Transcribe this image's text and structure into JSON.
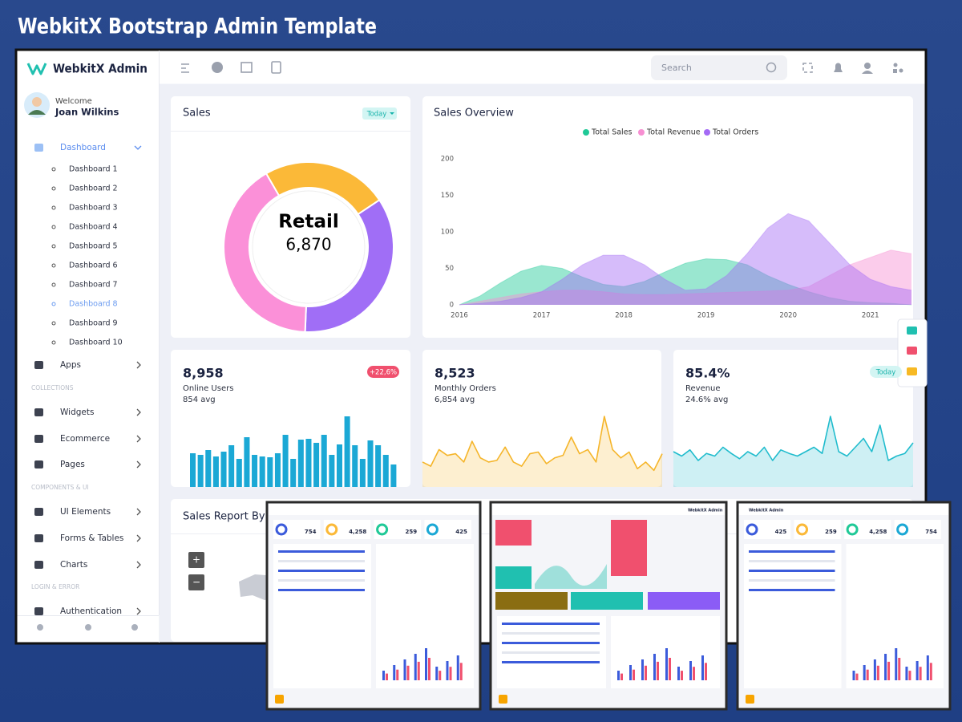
{
  "header": {
    "title": "WebkitX Bootstrap Admin Template"
  },
  "sidebar": {
    "brand": "WebkitX Admin",
    "welcome": "Welcome",
    "user": "Joan Wilkins",
    "menu": [
      {
        "label": "Dashboard",
        "open": true,
        "active_child": 7,
        "children": [
          "Dashboard 1",
          "Dashboard 2",
          "Dashboard 3",
          "Dashboard 4",
          "Dashboard 5",
          "Dashboard 6",
          "Dashboard 7",
          "Dashboard 8",
          "Dashboard 9",
          "Dashboard 10"
        ]
      },
      {
        "label": "Apps"
      },
      {
        "section": "COLLECTIONS"
      },
      {
        "label": "Widgets"
      },
      {
        "label": "Ecommerce"
      },
      {
        "label": "Pages"
      },
      {
        "section": "COMPONENTS & UI"
      },
      {
        "label": "UI Elements"
      },
      {
        "label": "Forms & Tables"
      },
      {
        "label": "Charts"
      },
      {
        "section": "LOGIN & ERROR"
      },
      {
        "label": "Authentication"
      }
    ]
  },
  "topbar": {
    "search_placeholder": "Search"
  },
  "sales_card": {
    "title": "Sales",
    "badge": "Today",
    "chart_data": {
      "type": "donut",
      "center_label": "Retail",
      "center_value": "6,870",
      "values": [
        24,
        35,
        41
      ],
      "colors": [
        "#fbb938",
        "#a06ef6",
        "#fb90d8"
      ]
    }
  },
  "sales_overview": {
    "title": "Sales Overview",
    "chart_data": {
      "type": "area",
      "x": [
        2016,
        2016.25,
        2016.5,
        2016.75,
        2017,
        2017.25,
        2017.5,
        2017.75,
        2018,
        2018.25,
        2018.5,
        2018.75,
        2019,
        2019.25,
        2019.5,
        2019.75,
        2020,
        2020.25,
        2020.5,
        2020.75,
        2021,
        2021.25,
        2021.5
      ],
      "xlim": [
        2016,
        2021.5
      ],
      "xticks": [
        2016,
        2017,
        2018,
        2019,
        2020,
        2021
      ],
      "ylim": [
        0,
        200
      ],
      "yticks": [
        0,
        50,
        100,
        150,
        200
      ],
      "series": [
        {
          "name": "Total Sales",
          "color": "#20c997",
          "values": [
            0,
            12,
            30,
            46,
            54,
            50,
            38,
            28,
            25,
            32,
            45,
            57,
            63,
            62,
            55,
            40,
            28,
            18,
            10,
            5,
            3,
            2,
            0
          ]
        },
        {
          "name": "Total Revenue",
          "color": "#f78fd2",
          "values": [
            0,
            5,
            10,
            15,
            18,
            20,
            20,
            18,
            15,
            14,
            14,
            15,
            16,
            17,
            18,
            19,
            20,
            25,
            40,
            55,
            65,
            75,
            70
          ]
        },
        {
          "name": "Total Orders",
          "color": "#a46af5",
          "values": [
            0,
            2,
            5,
            10,
            18,
            35,
            55,
            68,
            68,
            55,
            35,
            20,
            22,
            40,
            70,
            105,
            125,
            115,
            85,
            55,
            35,
            25,
            20
          ]
        }
      ]
    }
  },
  "stats": [
    {
      "value": "8,958",
      "label": "Online Users",
      "avg": "854 avg",
      "badge": "+22,6%",
      "badge_style": "danger",
      "chart_data": {
        "type": "bar",
        "color": "#1ba8d5",
        "values": [
          42,
          40,
          46,
          38,
          44,
          52,
          35,
          62,
          40,
          38,
          37,
          42,
          65,
          35,
          59,
          60,
          55,
          65,
          40,
          53,
          88,
          52,
          35,
          58,
          52,
          40,
          28
        ]
      }
    },
    {
      "value": "8,523",
      "label": "Monthly Orders",
      "avg": "6,854 avg",
      "chart_data": {
        "type": "area",
        "color": "#f5b52a",
        "values": [
          30,
          25,
          45,
          38,
          40,
          30,
          55,
          35,
          30,
          32,
          48,
          30,
          25,
          40,
          42,
          28,
          35,
          38,
          60,
          40,
          45,
          30,
          85,
          45,
          35,
          42,
          22,
          30,
          20,
          40
        ]
      }
    },
    {
      "value": "85.4%",
      "label": "Revenue",
      "avg": "24.6% avg",
      "badge": "Today",
      "badge_style": "info",
      "chart_data": {
        "type": "area",
        "color": "#20bccd",
        "values": [
          40,
          35,
          42,
          30,
          38,
          35,
          45,
          38,
          32,
          40,
          35,
          45,
          30,
          42,
          38,
          35,
          40,
          45,
          38,
          80,
          40,
          35,
          45,
          55,
          40,
          70,
          30,
          35,
          38,
          50
        ]
      }
    }
  ],
  "report": {
    "title": "Sales Report By Country",
    "zoom_in": "+",
    "zoom_out": "−"
  },
  "previews": [
    {
      "stats": [
        "754",
        "4,258",
        "259",
        "425"
      ]
    },
    {
      "brand": "WebkitX Admin"
    },
    {
      "brand": "WebkitX Admin",
      "stats": [
        "425",
        "259",
        "4,258",
        "754"
      ]
    }
  ]
}
